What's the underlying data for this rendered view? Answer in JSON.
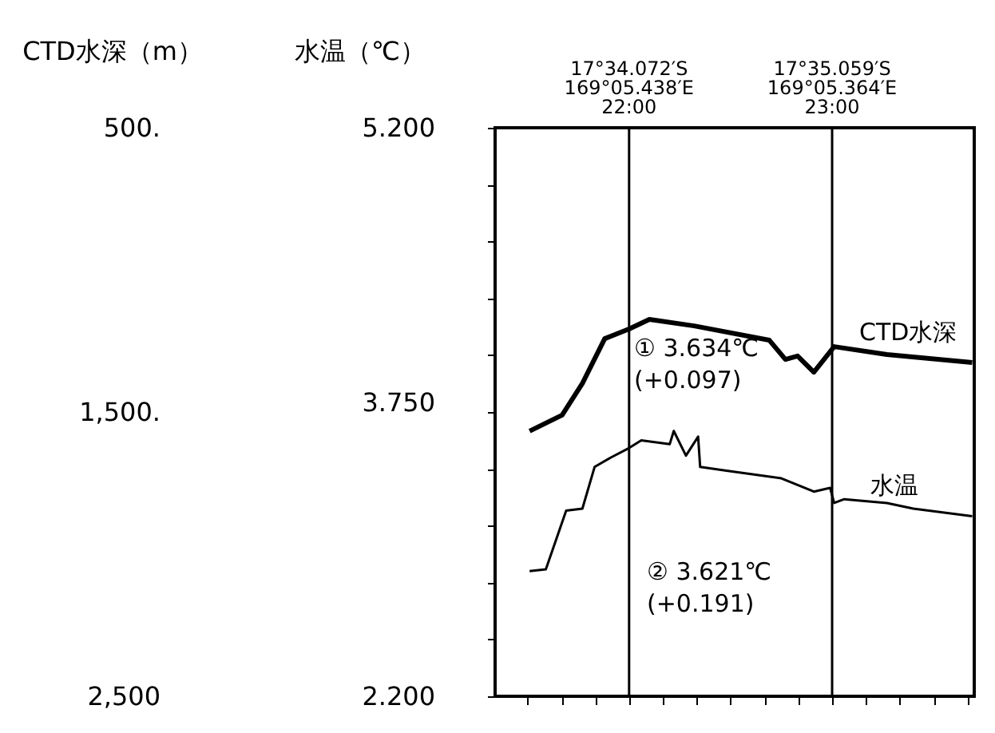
{
  "chart_data": {
    "type": "line",
    "ylabel": "CTD水深（m）",
    "y2label": "水温（℃）",
    "xlim": [
      21.34,
      23.7
    ],
    "xticks": [
      {
        "value": 21.5,
        "label": null
      },
      {
        "value": 21.667,
        "label": null
      },
      {
        "value": 21.833,
        "label": null
      },
      {
        "value": 22,
        "label": null
      },
      {
        "value": 22.167,
        "label": null
      },
      {
        "value": 22.333,
        "label": null
      },
      {
        "value": 22.5,
        "label": null
      },
      {
        "value": 22.667,
        "label": null
      },
      {
        "value": 22.833,
        "label": null
      },
      {
        "value": 23,
        "label": null
      },
      {
        "value": 23.167,
        "label": null
      },
      {
        "value": 23.333,
        "label": null
      },
      {
        "value": 23.5,
        "label": null
      },
      {
        "value": 23.667,
        "label": null
      }
    ],
    "ylim": [
      2500,
      500
    ],
    "yticks": [
      {
        "value": 500,
        "label": "500."
      },
      {
        "value": 700,
        "label": null
      },
      {
        "value": 900,
        "label": null
      },
      {
        "value": 1100,
        "label": null
      },
      {
        "value": 1300,
        "label": null
      },
      {
        "value": 1500,
        "label": "1,500."
      },
      {
        "value": 1700,
        "label": null
      },
      {
        "value": 1900,
        "label": null
      },
      {
        "value": 2100,
        "label": null
      },
      {
        "value": 2300,
        "label": null
      },
      {
        "value": 2500,
        "label": "2,500"
      }
    ],
    "y2lim": [
      2.2,
      5.2
    ],
    "y2ticks": [
      {
        "value": 5.2,
        "label": "5.200"
      },
      {
        "value": 3.75,
        "label": "3.750"
      },
      {
        "value": 2.2,
        "label": "2.200"
      }
    ],
    "series": [
      {
        "name": "CTD水深",
        "color": "#000000",
        "axis": "y",
        "x": [
          21.51,
          21.67,
          21.77,
          21.88,
          22.0,
          22.1,
          22.32,
          22.69,
          22.77,
          22.83,
          22.91,
          23.01,
          23.27,
          23.69
        ],
        "values": [
          1567,
          1511,
          1399,
          1242,
          1208,
          1174,
          1197,
          1247,
          1315,
          1303,
          1360,
          1270,
          1298,
          1326
        ]
      },
      {
        "name": "水温",
        "color": "#000000",
        "axis": "y2",
        "x": [
          21.51,
          21.59,
          21.69,
          21.77,
          21.83,
          21.91,
          22.0,
          22.06,
          22.2,
          22.22,
          22.28,
          22.34,
          22.35,
          22.48,
          22.75,
          22.91,
          22.99,
          23.01,
          23.06,
          23.27,
          23.4,
          23.69
        ],
        "values": [
          2.86,
          2.87,
          3.18,
          3.19,
          3.41,
          3.46,
          3.51,
          3.55,
          3.53,
          3.6,
          3.47,
          3.57,
          3.41,
          3.39,
          3.35,
          3.28,
          3.3,
          3.22,
          3.24,
          3.22,
          3.19,
          3.15
        ]
      }
    ],
    "ref_lines": [
      {
        "axis": "x",
        "value": 22,
        "label": "17°34.072′S\n169°05.438′E\n22:00",
        "color": "#000000"
      },
      {
        "axis": "x",
        "value": 23,
        "label": "17°35.059′S\n169°05.364′E\n23:00",
        "color": "#000000"
      }
    ],
    "annotations": [
      "① 3.634℃\n(+0.097)",
      "② 3.621℃\n(+0.191)"
    ],
    "grid": false,
    "legend": false,
    "marker": "none",
    "line_style": "solid"
  }
}
